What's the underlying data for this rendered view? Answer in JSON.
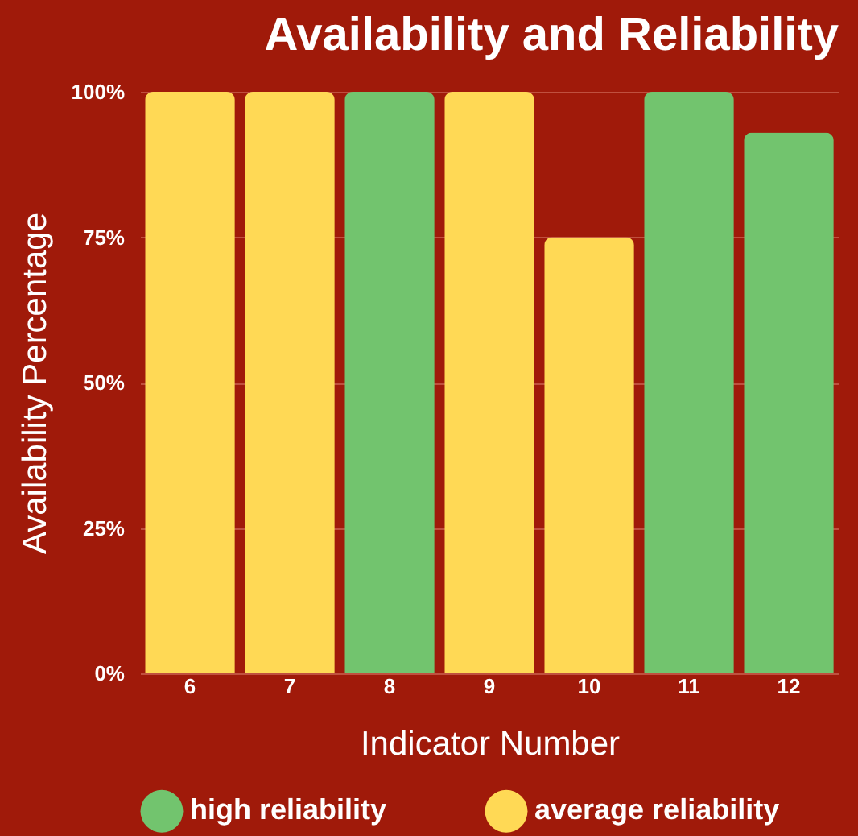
{
  "chart_data": {
    "type": "bar",
    "title": "Availability and Reliability",
    "xlabel": "Indicator Number",
    "ylabel": "Availability Percentage",
    "categories": [
      "6",
      "7",
      "8",
      "9",
      "10",
      "11",
      "12"
    ],
    "series": [
      {
        "name": "high reliability",
        "color": "#72c46e",
        "values": [
          null,
          null,
          100,
          null,
          null,
          100,
          93
        ]
      },
      {
        "name": "average reliability",
        "color": "#ffd955",
        "values": [
          100,
          100,
          null,
          100,
          75,
          null,
          null
        ]
      }
    ],
    "ylim": [
      0,
      100
    ],
    "yticks": [
      {
        "value": 0,
        "label": "0%"
      },
      {
        "value": 25,
        "label": "25%"
      },
      {
        "value": 50,
        "label": "50%"
      },
      {
        "value": 75,
        "label": "75%"
      },
      {
        "value": 100,
        "label": "100%"
      }
    ],
    "grid": "y",
    "legend": "bottom"
  }
}
